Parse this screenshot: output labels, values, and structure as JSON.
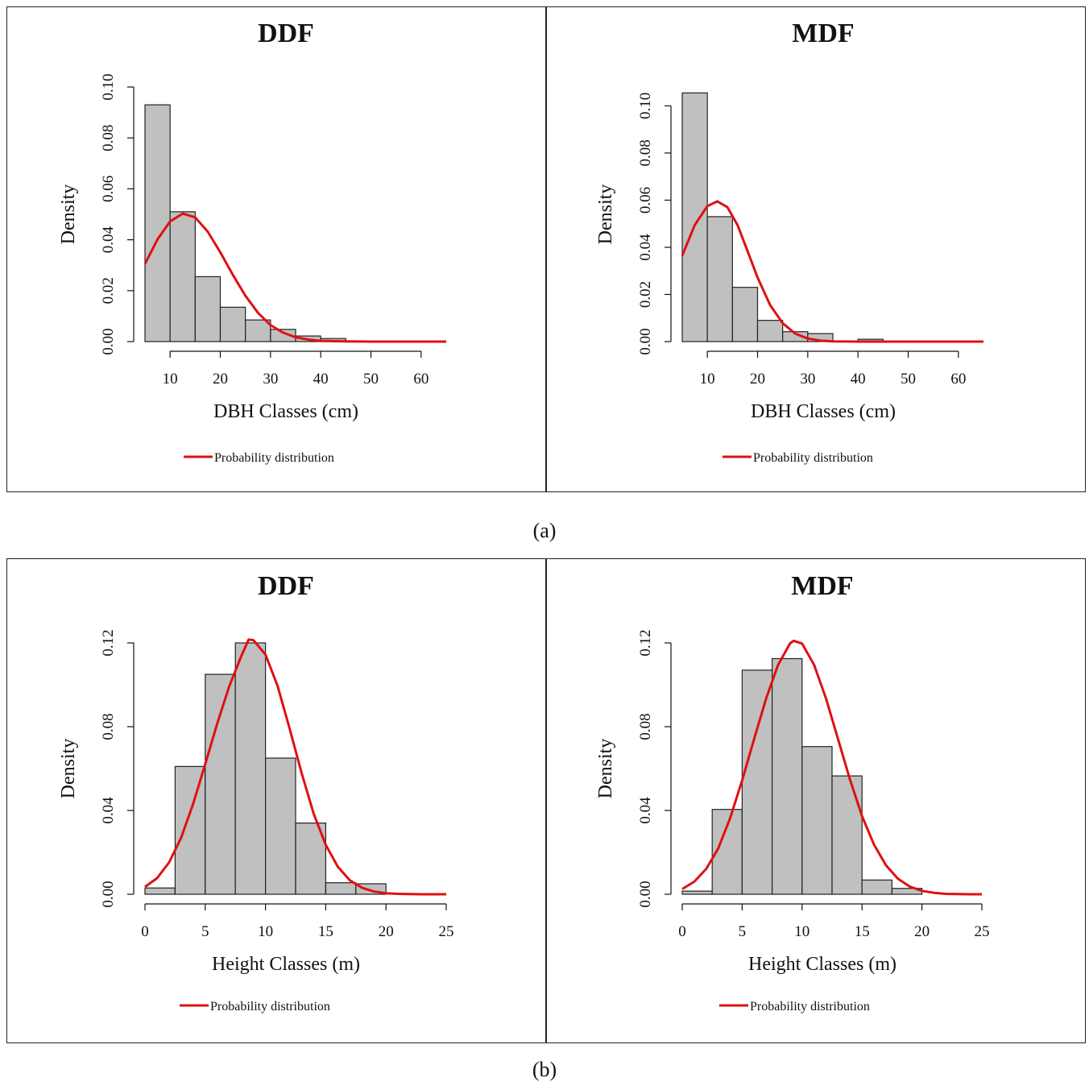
{
  "figure": {
    "caption_a": "(a)",
    "caption_b": "(b)"
  },
  "colors": {
    "bar_fill": "#c0c0c0",
    "bar_stroke": "#222222",
    "curve": "#e01010",
    "axis": "#111111"
  },
  "chart_data": [
    {
      "type": "bar",
      "title": "DDF",
      "xlabel": "DBH Classes (cm)",
      "ylabel": "Density",
      "legend": "Probability distribution",
      "legend_position": "bottom-left",
      "xlim": [
        5,
        65
      ],
      "ylim": [
        0,
        0.1
      ],
      "x_ticks": [
        10,
        20,
        30,
        40,
        50,
        60
      ],
      "x_tick_labels": [
        "10",
        "20",
        "30",
        "40",
        "50",
        "60"
      ],
      "y_ticks": [
        0,
        0.02,
        0.04,
        0.06,
        0.08,
        0.1
      ],
      "y_tick_labels": [
        "0.00",
        "0.02",
        "0.04",
        "0.06",
        "0.08",
        "0.10"
      ],
      "bin_edges": [
        5,
        10,
        15,
        20,
        25,
        30,
        35,
        40,
        45,
        50,
        55,
        60,
        65
      ],
      "values": [
        0.093,
        0.051,
        0.0255,
        0.0135,
        0.0085,
        0.0048,
        0.0022,
        0.0012,
        0.0001,
        0.0001,
        0,
        0
      ],
      "curve": {
        "name": "Probability distribution",
        "x": [
          5,
          7.5,
          10,
          12.5,
          15,
          17.5,
          20,
          22.5,
          25,
          27.5,
          30,
          32.5,
          35,
          37.5,
          40,
          45,
          50,
          55,
          60,
          65
        ],
        "y": [
          0.0305,
          0.0402,
          0.0472,
          0.0503,
          0.0488,
          0.0432,
          0.0351,
          0.0262,
          0.018,
          0.0113,
          0.0065,
          0.0035,
          0.0017,
          0.0008,
          0.0003,
          5e-05,
          0,
          0,
          0,
          0
        ]
      }
    },
    {
      "type": "bar",
      "title": "MDF",
      "xlabel": "DBH Classes (cm)",
      "ylabel": "Density",
      "legend": "Probability distribution",
      "legend_position": "bottom-left",
      "xlim": [
        5,
        65
      ],
      "ylim": [
        0,
        0.108
      ],
      "x_ticks": [
        10,
        20,
        30,
        40,
        50,
        60
      ],
      "x_tick_labels": [
        "10",
        "20",
        "30",
        "40",
        "50",
        "60"
      ],
      "y_ticks": [
        0,
        0.02,
        0.04,
        0.06,
        0.08,
        0.1
      ],
      "y_tick_labels": [
        "0.00",
        "0.02",
        "0.04",
        "0.06",
        "0.08",
        "0.10"
      ],
      "bin_edges": [
        5,
        10,
        15,
        20,
        25,
        30,
        35,
        40,
        45,
        50,
        55,
        60,
        65
      ],
      "values": [
        0.1055,
        0.053,
        0.023,
        0.009,
        0.0042,
        0.0034,
        0.0002,
        0.001,
        0.0001,
        0.0002,
        0,
        0
      ],
      "curve": {
        "name": "Probability distribution",
        "x": [
          5,
          7.5,
          10,
          12,
          14,
          16,
          18,
          20,
          22.5,
          25,
          27.5,
          30,
          32.5,
          35,
          40,
          45,
          50,
          55,
          60,
          65
        ],
        "y": [
          0.0365,
          0.0495,
          0.0575,
          0.0595,
          0.057,
          0.0495,
          0.0385,
          0.0272,
          0.0155,
          0.0078,
          0.0034,
          0.0013,
          0.0004,
          0.0001,
          0,
          0,
          0,
          0,
          0,
          0
        ]
      }
    },
    {
      "type": "bar",
      "title": "DDF",
      "xlabel": "Height Classes (m)",
      "ylabel": "Density",
      "legend": "Probability distribution",
      "legend_position": "bottom-left",
      "xlim": [
        0,
        25
      ],
      "ylim": [
        0,
        0.12
      ],
      "x_ticks": [
        0,
        5,
        10,
        15,
        20,
        25
      ],
      "x_tick_labels": [
        "0",
        "5",
        "10",
        "15",
        "20",
        "25"
      ],
      "y_ticks": [
        0,
        0.04,
        0.08,
        0.12
      ],
      "y_tick_labels": [
        "0.00",
        "0.04",
        "0.08",
        "0.12"
      ],
      "bin_edges": [
        0,
        2.5,
        5,
        7.5,
        10,
        12.5,
        15,
        17.5,
        20
      ],
      "values": [
        0.003,
        0.061,
        0.105,
        0.12,
        0.065,
        0.034,
        0.0055,
        0.005
      ],
      "curve": {
        "name": "Probability distribution",
        "x": [
          0,
          1,
          2,
          3,
          4,
          5,
          6,
          7,
          8,
          8.6,
          9,
          10,
          11,
          12,
          13,
          14,
          15,
          16,
          17,
          18,
          19,
          20,
          21,
          22,
          23,
          24,
          25
        ],
        "y": [
          0.0035,
          0.0077,
          0.0152,
          0.027,
          0.0432,
          0.0621,
          0.0816,
          0.0994,
          0.1138,
          0.1216,
          0.1213,
          0.1144,
          0.0995,
          0.0792,
          0.0578,
          0.0385,
          0.0236,
          0.0131,
          0.0067,
          0.0031,
          0.0013,
          0.0005,
          0.0002,
          0.0001,
          0,
          0,
          0
        ]
      }
    },
    {
      "type": "bar",
      "title": "MDF",
      "xlabel": "Height Classes (m)",
      "ylabel": "Density",
      "legend": "Probability distribution",
      "legend_position": "bottom-left",
      "xlim": [
        0,
        25
      ],
      "ylim": [
        0,
        0.12
      ],
      "x_ticks": [
        0,
        5,
        10,
        15,
        20,
        25
      ],
      "x_tick_labels": [
        "0",
        "5",
        "10",
        "15",
        "20",
        "25"
      ],
      "y_ticks": [
        0,
        0.04,
        0.08,
        0.12
      ],
      "y_tick_labels": [
        "0.00",
        "0.04",
        "0.08",
        "0.12"
      ],
      "bin_edges": [
        0,
        2.5,
        5,
        7.5,
        10,
        12.5,
        15,
        17.5,
        20
      ],
      "values": [
        0.0015,
        0.0405,
        0.107,
        0.1125,
        0.0705,
        0.0565,
        0.0068,
        0.0028
      ],
      "curve": {
        "name": "Probability distribution",
        "x": [
          0,
          1,
          2,
          3,
          4,
          5,
          6,
          7,
          8,
          9,
          9.3,
          10,
          11,
          12,
          13,
          14,
          15,
          16,
          17,
          18,
          19,
          20,
          21,
          22,
          23,
          24,
          25
        ],
        "y": [
          0.0025,
          0.006,
          0.0121,
          0.0218,
          0.0364,
          0.0544,
          0.0742,
          0.0935,
          0.1095,
          0.1198,
          0.121,
          0.1197,
          0.1095,
          0.0934,
          0.0741,
          0.0547,
          0.0373,
          0.0237,
          0.0138,
          0.0074,
          0.0036,
          0.0016,
          0.0007,
          0.0002,
          0.0001,
          0,
          0
        ]
      }
    }
  ]
}
